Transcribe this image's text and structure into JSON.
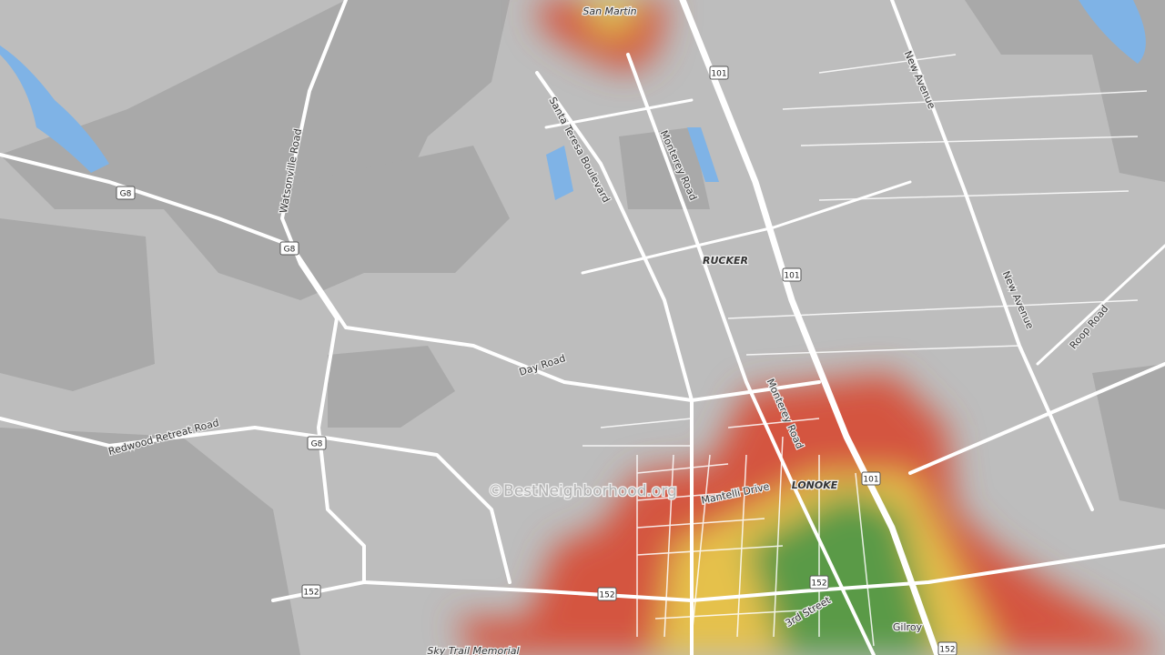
{
  "map": {
    "places": [
      "San Martin",
      "RUCKER",
      "LONOKE",
      "Gilroy"
    ],
    "roads": [
      "Santa Teresa Boulevard",
      "Monterey Road",
      "Watsonville Road",
      "New Avenue",
      "New Avenue",
      "Roop Road",
      "Day Road",
      "Redwood Retreat Road",
      "Monterey Road",
      "Mantelli Drive",
      "3rd Street",
      "Sky Trail Memorial"
    ],
    "shields": [
      "101",
      "101",
      "101",
      "G8",
      "G8",
      "G8",
      "152",
      "152",
      "152",
      "152"
    ],
    "watermark": "©BestNeighborhood.org"
  }
}
